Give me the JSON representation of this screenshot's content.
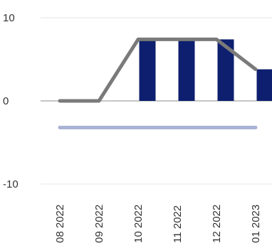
{
  "chart_data": {
    "type": "bar",
    "categories": [
      "08 2022",
      "09 2022",
      "10 2022",
      "11 2022",
      "12 2022",
      "01 2023"
    ],
    "series": [
      {
        "kind": "bar",
        "values": [
          0,
          0,
          7.4,
          7.4,
          7.4,
          3.8
        ],
        "color": "#0d1f6e"
      },
      {
        "kind": "line",
        "values": [
          0,
          0,
          7.4,
          7.4,
          7.4,
          3.8
        ],
        "color": "#7a7a7a"
      },
      {
        "kind": "line",
        "values": [
          -3.2,
          -3.2,
          -3.2,
          -3.2,
          -3.2,
          -3.2
        ],
        "color": "#a9b3d6"
      }
    ],
    "yticks": [
      10,
      0,
      -10
    ],
    "ylim": [
      -10,
      10
    ],
    "grid": true,
    "title": "",
    "xlabel": "",
    "ylabel": ""
  }
}
